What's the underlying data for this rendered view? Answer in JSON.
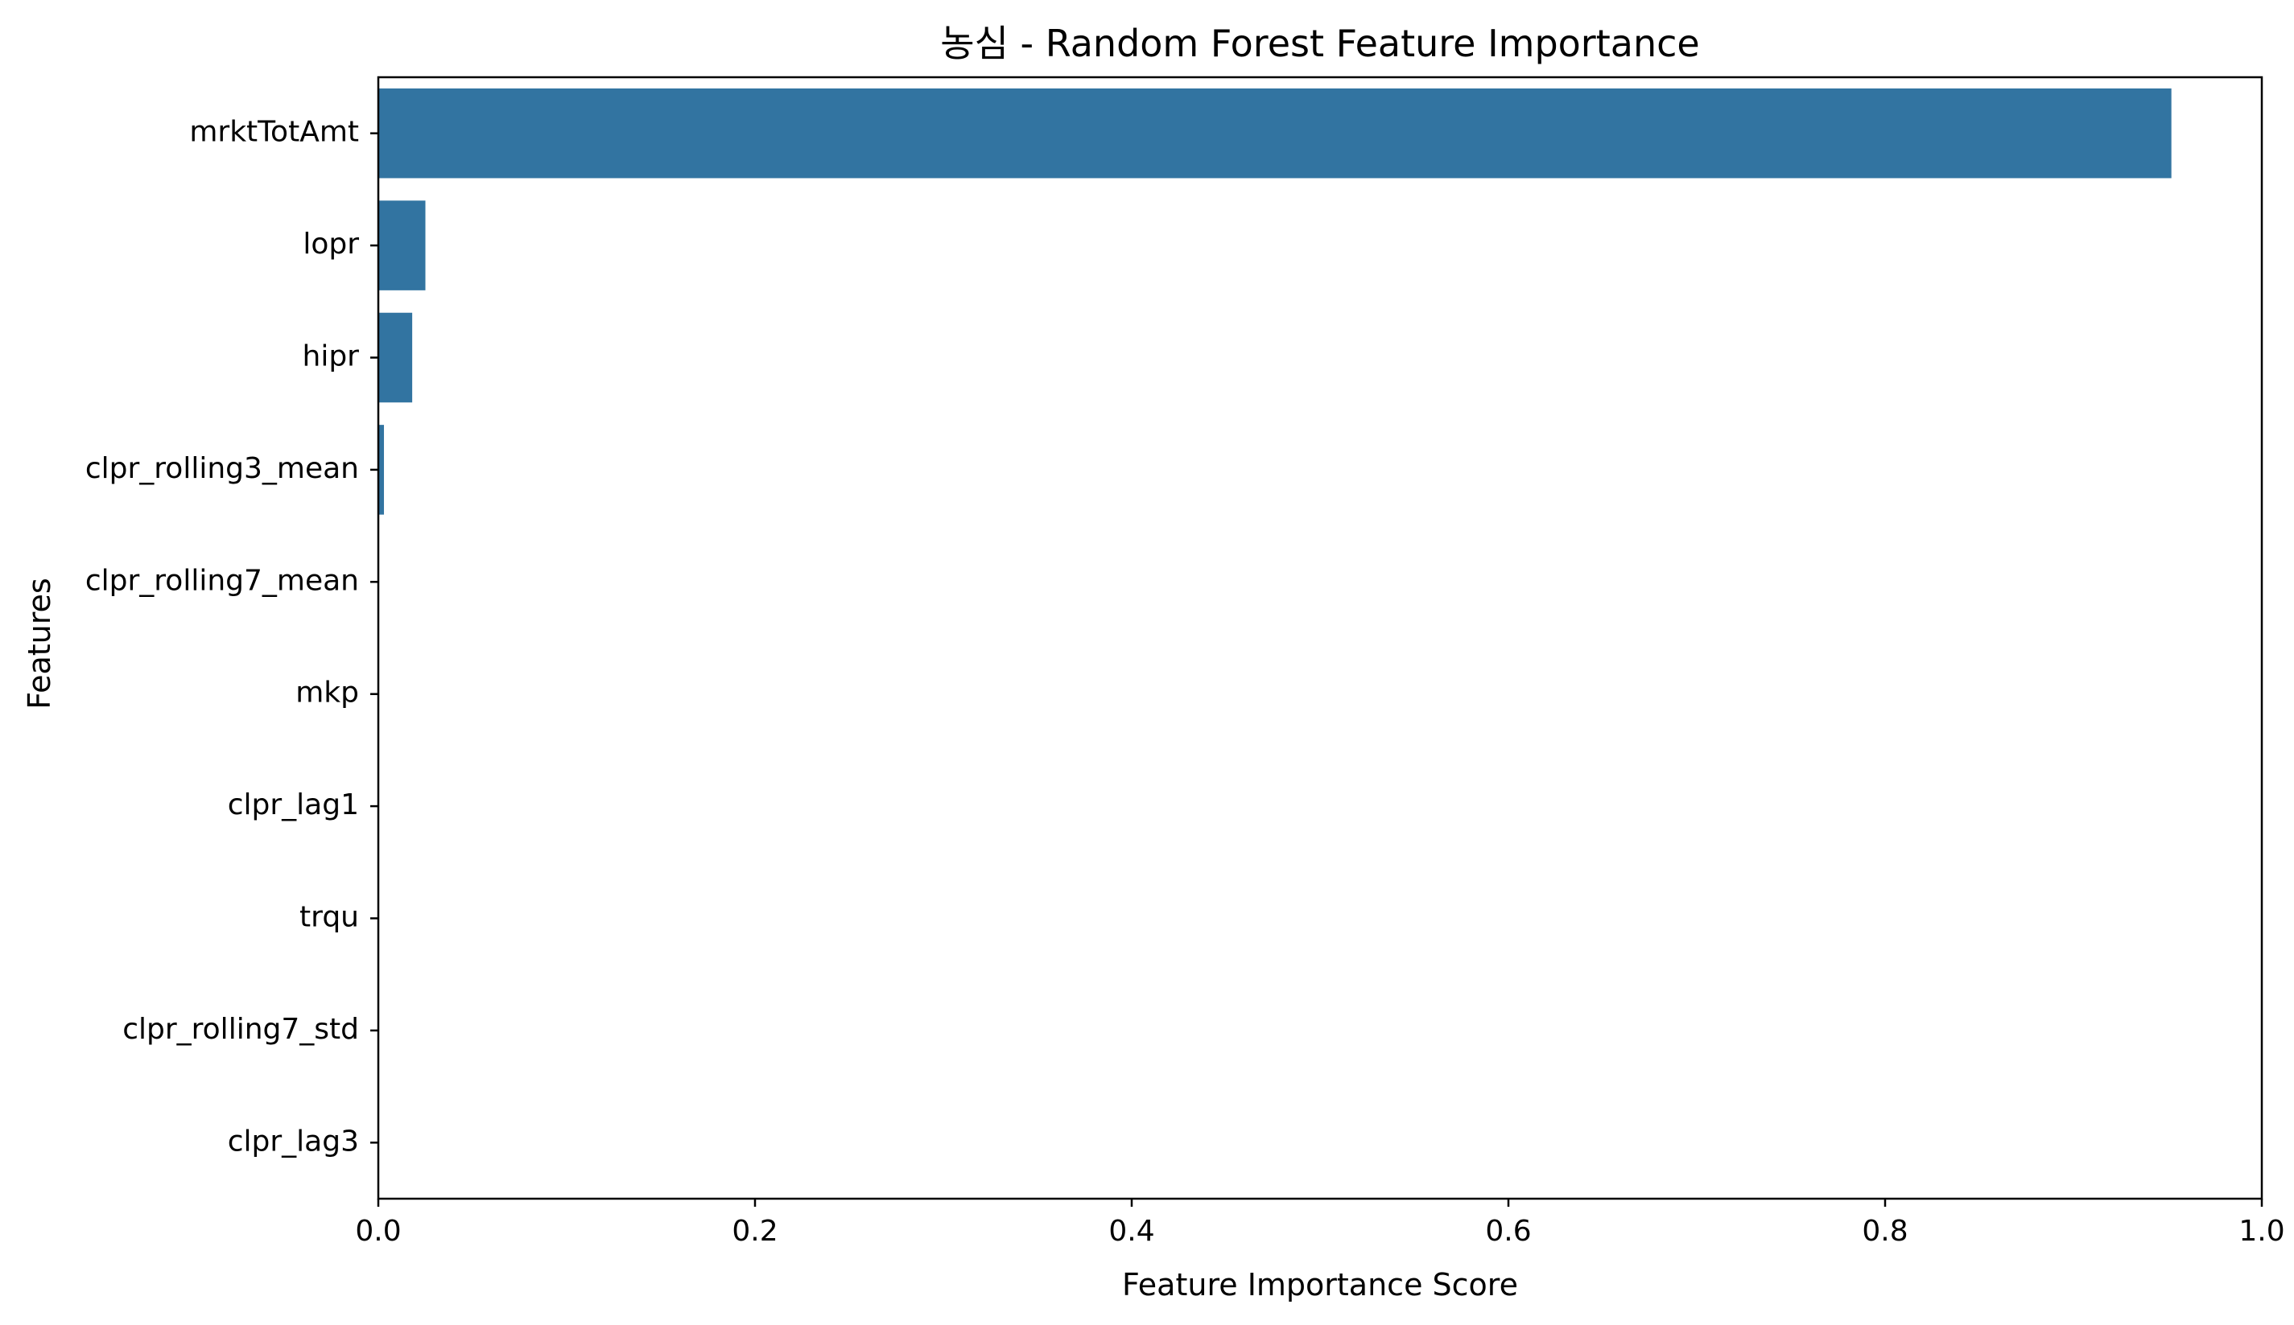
{
  "chart_data": {
    "type": "bar",
    "orientation": "horizontal",
    "title": "농심 - Random Forest Feature Importance",
    "xlabel": "Feature Importance Score",
    "ylabel": "Features",
    "xlim": [
      0.0,
      1.0
    ],
    "x_ticks": [
      "0.0",
      "0.2",
      "0.4",
      "0.6",
      "0.8",
      "1.0"
    ],
    "x_tick_values": [
      0.0,
      0.2,
      0.4,
      0.6,
      0.8,
      1.0
    ],
    "categories": [
      "mrktTotAmt",
      "lopr",
      "hipr",
      "clpr_rolling3_mean",
      "clpr_rolling7_mean",
      "mkp",
      "clpr_lag1",
      "trqu",
      "clpr_rolling7_std",
      "clpr_lag3"
    ],
    "values": [
      0.952,
      0.025,
      0.018,
      0.003,
      0.0004,
      0.0003,
      0.0002,
      0.0001,
      0.0001,
      0.0001
    ],
    "grid": false,
    "legend": "none",
    "colors": {
      "bar": "#3274a1",
      "axis": "#000000",
      "background": "#ffffff"
    }
  }
}
